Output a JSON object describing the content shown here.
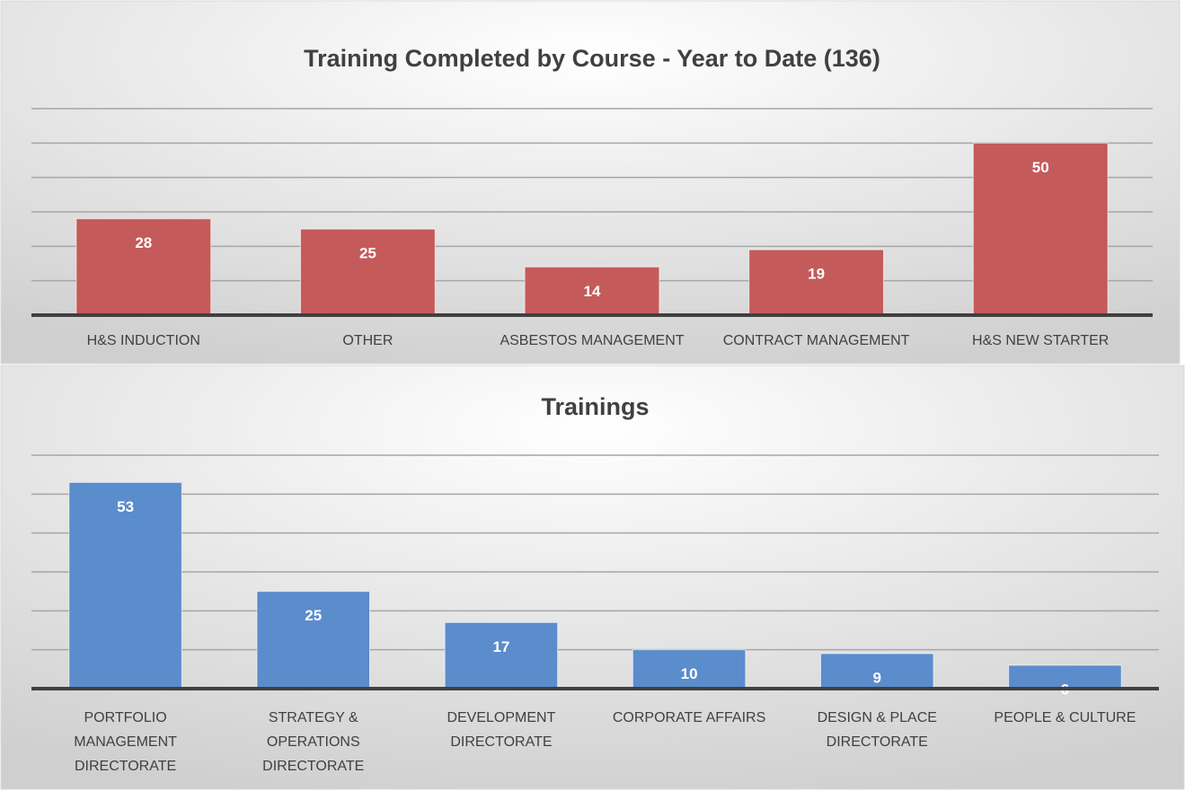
{
  "chart_data": [
    {
      "type": "bar",
      "title": "Training Completed by Course - Year to Date (136)",
      "categories": [
        "H&S INDUCTION",
        "OTHER",
        "ASBESTOS MANAGEMENT",
        "CONTRACT MANAGEMENT",
        "H&S NEW STARTER"
      ],
      "values": [
        28,
        25,
        14,
        19,
        50
      ],
      "color": "#c55a5a",
      "ylim": [
        0,
        60
      ],
      "yticks": [
        0,
        10,
        20,
        30,
        40,
        50,
        60
      ],
      "grid": true
    },
    {
      "type": "bar",
      "title": "Trainings",
      "categories": [
        "PORTFOLIO MANAGEMENT DIRECTORATE",
        "STRATEGY & OPERATIONS DIRECTORATE",
        "DEVELOPMENT DIRECTORATE",
        "CORPORATE AFFAIRS",
        "DESIGN & PLACE DIRECTORATE",
        "PEOPLE & CULTURE"
      ],
      "values": [
        53,
        25,
        17,
        10,
        9,
        6
      ],
      "color": "#5b8ccc",
      "ylim": [
        0,
        60
      ],
      "yticks": [
        0,
        10,
        20,
        30,
        40,
        50,
        60
      ],
      "grid": true
    }
  ]
}
